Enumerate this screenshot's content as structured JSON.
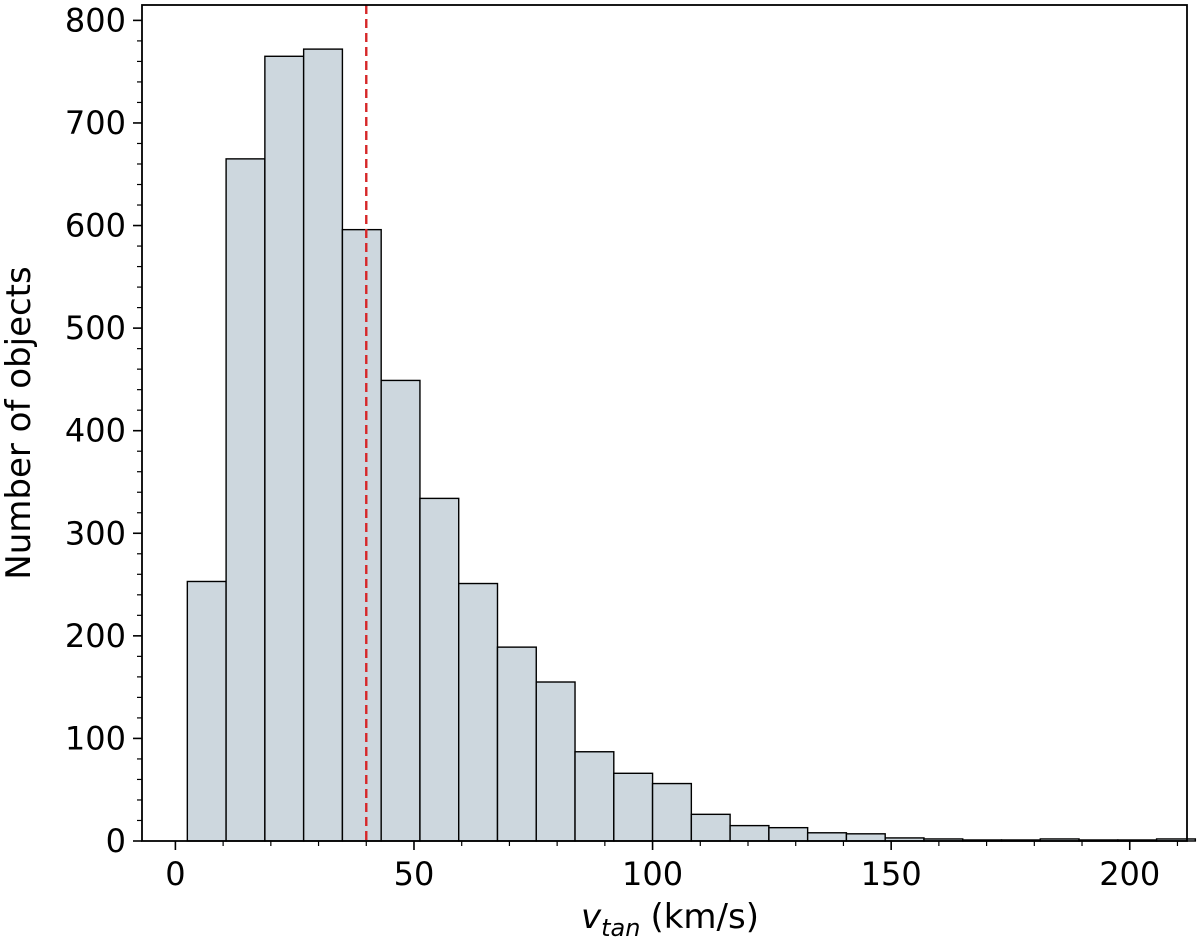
{
  "chart_data": {
    "type": "bar",
    "subtype": "histogram",
    "title": "",
    "xlabel": {
      "symbol": "v",
      "subscript": "tan",
      "units": "(km/s)"
    },
    "ylabel": "Number of objects",
    "xlim": [
      -7,
      212
    ],
    "ylim": [
      0,
      815
    ],
    "bin_start": 2.5,
    "bin_width": 8.125,
    "counts": [
      253,
      665,
      765,
      772,
      596,
      449,
      334,
      251,
      189,
      155,
      87,
      66,
      56,
      26,
      15,
      13,
      8,
      7,
      3,
      2,
      1,
      1,
      2,
      1,
      1,
      2
    ],
    "x_ticks": [
      0,
      50,
      100,
      150,
      200
    ],
    "x_tick_labels": [
      "0",
      "50",
      "100",
      "150",
      "200"
    ],
    "y_ticks": [
      0,
      100,
      200,
      300,
      400,
      500,
      600,
      700,
      800
    ],
    "y_tick_labels": [
      "0",
      "100",
      "200",
      "300",
      "400",
      "500",
      "600",
      "700",
      "800"
    ],
    "vline": {
      "x": 40,
      "color": "#d62728",
      "style": "dashed"
    },
    "bar_color": "#cdd7de",
    "edge_color": "#000000",
    "grid": false,
    "legend": "none"
  }
}
